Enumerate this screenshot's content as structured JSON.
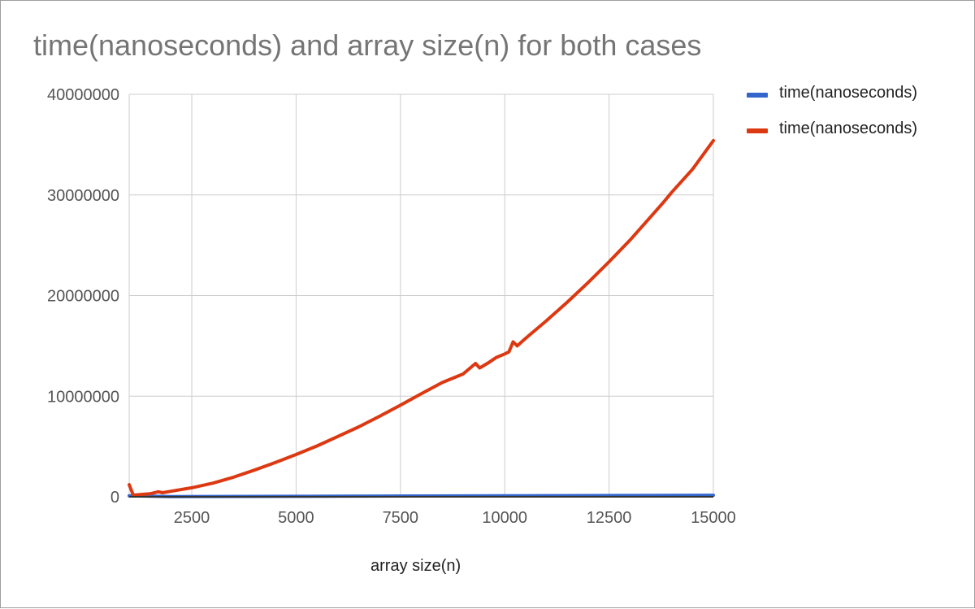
{
  "chart_data": {
    "type": "line",
    "title": "time(nanoseconds) and array size(n) for both cases",
    "xlabel": "array size(n)",
    "ylabel": "",
    "xlim": [
      1000,
      15000
    ],
    "ylim": [
      0,
      40000000
    ],
    "x_ticks": [
      "2500",
      "5000",
      "7500",
      "10000",
      "12500",
      "15000"
    ],
    "y_ticks": [
      "0",
      "10000000",
      "20000000",
      "30000000",
      "40000000"
    ],
    "grid": true,
    "legend_position": "right",
    "series": [
      {
        "name": "time(nanoseconds)",
        "color": "#3366cc",
        "x": [
          1000,
          2000,
          3000,
          4000,
          5000,
          6000,
          7000,
          8000,
          9000,
          10000,
          11000,
          12000,
          13000,
          14000,
          15000
        ],
        "values": [
          100000,
          20000,
          30000,
          40000,
          50000,
          60000,
          70000,
          80000,
          90000,
          100000,
          110000,
          120000,
          130000,
          140000,
          150000
        ]
      },
      {
        "name": "time(nanoseconds)",
        "color": "#dc3912",
        "x": [
          1000,
          1100,
          1200,
          1500,
          1700,
          1800,
          2000,
          2500,
          3000,
          3500,
          4000,
          4500,
          5000,
          5500,
          6000,
          6500,
          7000,
          7500,
          8000,
          8500,
          9000,
          9300,
          9400,
          9500,
          9600,
          9800,
          10000,
          10100,
          10200,
          10300,
          10500,
          11000,
          11500,
          12000,
          12500,
          13000,
          13500,
          13800,
          14000,
          14500,
          15000
        ],
        "values": [
          1200000,
          150000,
          200000,
          300000,
          500000,
          400000,
          550000,
          900000,
          1350000,
          1950000,
          2650000,
          3400000,
          4200000,
          5050000,
          6000000,
          6950000,
          8000000,
          9100000,
          10250000,
          11350000,
          12200000,
          13250000,
          12800000,
          13050000,
          13300000,
          13850000,
          14200000,
          14400000,
          15400000,
          15000000,
          15750000,
          17500000,
          19350000,
          21300000,
          23350000,
          25500000,
          27850000,
          29250000,
          30250000,
          32550000,
          35400000
        ]
      }
    ]
  }
}
